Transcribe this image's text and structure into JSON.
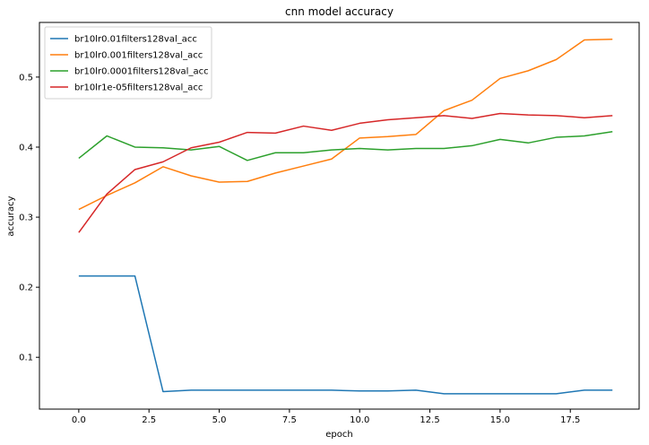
{
  "chart_data": {
    "type": "line",
    "title": "cnn model accuracy",
    "xlabel": "epoch",
    "ylabel": "accuracy",
    "xlim": [
      -1.4,
      19.95
    ],
    "ylim": [
      0.026,
      0.578
    ],
    "xticks": [
      0.0,
      2.5,
      5.0,
      7.5,
      10.0,
      12.5,
      15.0,
      17.5
    ],
    "xtick_labels": [
      "0.0",
      "2.5",
      "5.0",
      "7.5",
      "10.0",
      "12.5",
      "15.0",
      "17.5"
    ],
    "yticks": [
      0.1,
      0.2,
      0.3,
      0.4,
      0.5
    ],
    "ytick_labels": [
      "0.1",
      "0.2",
      "0.3",
      "0.4",
      "0.5"
    ],
    "grid": false,
    "legend_position": "top-left",
    "x": [
      0,
      1,
      2,
      3,
      4,
      5,
      6,
      7,
      8,
      9,
      10,
      11,
      12,
      13,
      14,
      15,
      16,
      17,
      18,
      19
    ],
    "series": [
      {
        "name": "br10lr0.01filters128val_acc",
        "color": "#1f77b4",
        "values": [
          0.216,
          0.216,
          0.216,
          0.051,
          0.053,
          0.053,
          0.053,
          0.053,
          0.053,
          0.053,
          0.052,
          0.052,
          0.053,
          0.048,
          0.048,
          0.048,
          0.048,
          0.048,
          0.053,
          0.053
        ]
      },
      {
        "name": "br10lr0.001filters128val_acc",
        "color": "#ff7f0e",
        "values": [
          0.311,
          0.331,
          0.349,
          0.372,
          0.359,
          0.35,
          0.351,
          0.363,
          0.373,
          0.383,
          0.413,
          0.415,
          0.418,
          0.452,
          0.467,
          0.498,
          0.509,
          0.525,
          0.553,
          0.554
        ]
      },
      {
        "name": "br10lr0.0001filters128val_acc",
        "color": "#2ca02c",
        "values": [
          0.384,
          0.416,
          0.4,
          0.399,
          0.396,
          0.401,
          0.381,
          0.392,
          0.392,
          0.396,
          0.398,
          0.396,
          0.398,
          0.398,
          0.402,
          0.411,
          0.406,
          0.414,
          0.416,
          0.422
        ]
      },
      {
        "name": "br10lr1e-05filters128val_acc",
        "color": "#d62728",
        "values": [
          0.278,
          0.333,
          0.368,
          0.379,
          0.399,
          0.407,
          0.421,
          0.42,
          0.43,
          0.424,
          0.434,
          0.439,
          0.442,
          0.445,
          0.441,
          0.448,
          0.446,
          0.445,
          0.442,
          0.445
        ]
      }
    ]
  }
}
